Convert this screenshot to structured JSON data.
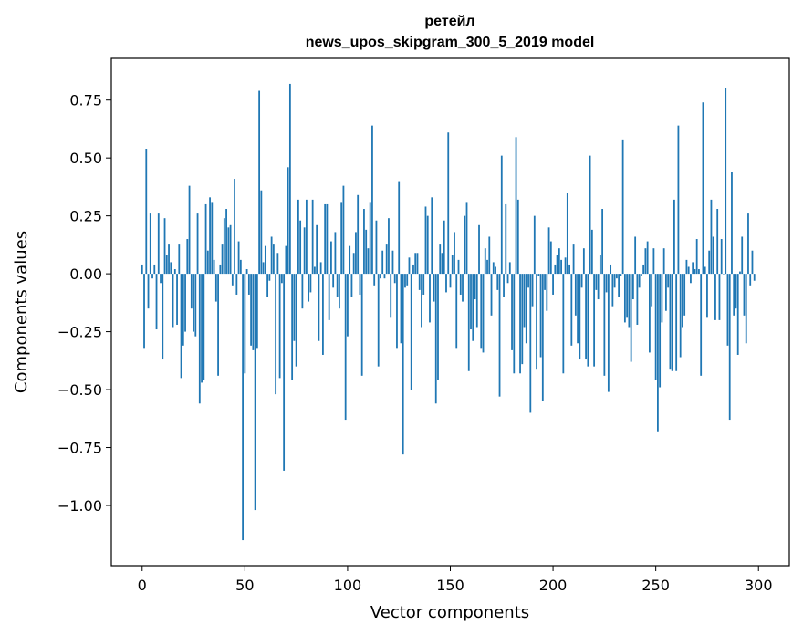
{
  "chart_data": {
    "type": "bar",
    "title": "ретейл",
    "subtitle": "news_upos_skipgram_300_5_2019 model",
    "xlabel": "Vector components",
    "ylabel": "Components values",
    "xlim": [
      -15,
      315
    ],
    "ylim": [
      -1.26,
      0.93
    ],
    "xticks": [
      0,
      50,
      100,
      150,
      200,
      250,
      300
    ],
    "yticks": [
      -1.0,
      -0.75,
      -0.5,
      -0.25,
      0.0,
      0.25,
      0.5,
      0.75
    ],
    "ytick_labels": [
      "−1.00",
      "−0.75",
      "−0.50",
      "−0.25",
      "0.00",
      "0.25",
      "0.50",
      "0.75"
    ],
    "bar_color": "#1f77b4",
    "grid": false,
    "legend": "none",
    "values": [
      0.04,
      -0.32,
      0.54,
      -0.15,
      0.26,
      -0.02,
      0.04,
      -0.24,
      0.26,
      -0.04,
      -0.37,
      0.24,
      0.08,
      0.13,
      0.05,
      -0.23,
      0.02,
      -0.22,
      0.13,
      -0.45,
      -0.31,
      -0.25,
      0.15,
      0.38,
      -0.15,
      -0.25,
      -0.27,
      0.26,
      -0.56,
      -0.47,
      -0.46,
      0.3,
      0.1,
      0.33,
      0.31,
      0.06,
      -0.12,
      -0.44,
      0.04,
      0.13,
      0.24,
      0.28,
      0.2,
      0.21,
      -0.05,
      0.41,
      -0.09,
      0.14,
      0.06,
      -1.15,
      -0.43,
      0.02,
      -0.09,
      -0.31,
      -0.33,
      -1.02,
      -0.32,
      0.79,
      0.36,
      0.05,
      0.12,
      -0.1,
      -0.03,
      0.16,
      0.13,
      -0.52,
      0.09,
      -0.45,
      -0.04,
      -0.85,
      0.12,
      0.46,
      0.82,
      -0.46,
      -0.29,
      -0.4,
      0.32,
      0.23,
      -0.15,
      0.2,
      0.32,
      -0.12,
      -0.08,
      0.32,
      0.03,
      0.21,
      -0.29,
      0.05,
      -0.35,
      0.3,
      0.3,
      -0.2,
      0.14,
      -0.06,
      0.18,
      -0.1,
      -0.15,
      0.31,
      0.38,
      -0.63,
      -0.27,
      0.12,
      -0.1,
      0.09,
      0.18,
      0.34,
      -0.09,
      -0.44,
      0.28,
      0.19,
      0.11,
      0.31,
      0.64,
      -0.05,
      0.23,
      -0.4,
      -0.02,
      0.1,
      -0.02,
      0.13,
      0.24,
      -0.19,
      0.1,
      -0.04,
      -0.32,
      0.4,
      -0.3,
      -0.78,
      -0.06,
      -0.05,
      0.07,
      -0.5,
      0.04,
      0.09,
      0.09,
      -0.07,
      -0.23,
      -0.09,
      0.29,
      0.25,
      -0.21,
      0.33,
      -0.12,
      -0.56,
      -0.46,
      0.13,
      0.09,
      0.23,
      -0.08,
      0.61,
      -0.06,
      0.08,
      0.18,
      -0.32,
      0.06,
      -0.09,
      -0.12,
      0.25,
      0.31,
      -0.42,
      -0.24,
      -0.29,
      -0.11,
      -0.23,
      0.21,
      -0.32,
      -0.34,
      0.11,
      0.06,
      0.16,
      -0.18,
      0.05,
      0.03,
      -0.07,
      -0.53,
      0.51,
      -0.1,
      0.3,
      -0.04,
      0.05,
      -0.33,
      -0.43,
      0.59,
      0.32,
      -0.43,
      -0.39,
      -0.23,
      -0.3,
      -0.06,
      -0.6,
      -0.14,
      0.25,
      -0.41,
      -0.01,
      -0.36,
      -0.55,
      -0.07,
      -0.16,
      0.2,
      0.14,
      -0.09,
      0.04,
      0.08,
      0.11,
      0.06,
      -0.43,
      0.07,
      0.35,
      0.04,
      -0.31,
      0.13,
      -0.18,
      -0.3,
      -0.37,
      -0.06,
      0.11,
      -0.37,
      -0.4,
      0.51,
      0.19,
      -0.4,
      -0.07,
      -0.11,
      0.08,
      0.28,
      -0.44,
      -0.08,
      -0.51,
      0.04,
      -0.14,
      -0.06,
      -0.02,
      -0.1,
      -0.01,
      0.58,
      -0.21,
      -0.19,
      -0.23,
      -0.38,
      -0.11,
      0.16,
      -0.22,
      -0.06,
      -0.01,
      0.04,
      0.11,
      0.14,
      -0.34,
      -0.14,
      0.11,
      -0.46,
      -0.68,
      -0.49,
      -0.21,
      0.11,
      -0.16,
      -0.06,
      -0.41,
      -0.42,
      0.32,
      -0.42,
      0.64,
      -0.36,
      -0.23,
      -0.18,
      0.06,
      0.03,
      -0.04,
      0.05,
      0.02,
      0.15,
      0.02,
      -0.44,
      0.74,
      0.03,
      -0.19,
      0.1,
      0.32,
      0.16,
      -0.2,
      0.28,
      -0.2,
      0.15,
      0.0,
      0.8,
      -0.31,
      -0.63,
      0.44,
      -0.18,
      -0.15,
      -0.35,
      0.01,
      0.16,
      -0.18,
      -0.3,
      0.26,
      -0.05,
      0.1,
      -0.03
    ]
  }
}
